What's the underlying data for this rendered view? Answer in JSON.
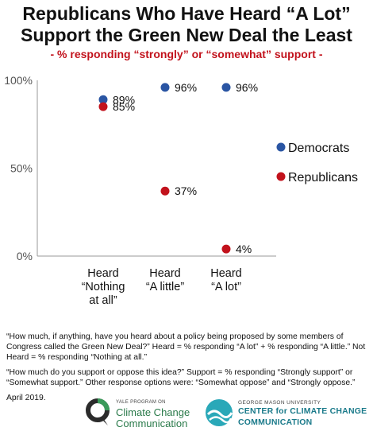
{
  "header": {
    "title_line1": "Republicans Who Have Heard “A Lot”",
    "title_line2": "Support the Green New Deal the Least",
    "subtitle": "- % responding “strongly” or “somewhat” support -"
  },
  "colors": {
    "democrats": "#2a55a3",
    "republicans": "#c2121c",
    "subtitle": "#c2121c",
    "grid": "#d0d0d0",
    "axis": "#999999"
  },
  "chart_data": {
    "type": "scatter",
    "categories": [
      "Heard\n“Nothing\nat all”",
      "Heard\n“A little”",
      "Heard\n“A lot”"
    ],
    "series": [
      {
        "name": "Democrats",
        "values": [
          89,
          96,
          96
        ],
        "labels": [
          "89%",
          "96%",
          "96%"
        ]
      },
      {
        "name": "Republicans",
        "values": [
          85,
          37,
          4
        ],
        "labels": [
          "85%",
          "37%",
          "4%"
        ]
      }
    ],
    "ylim": [
      0,
      100
    ],
    "yticks": [
      "0%",
      "50%",
      "100%"
    ],
    "legend_position": "right",
    "grid": false
  },
  "notes": {
    "note1": "“How much, if anything, have you heard about a policy being proposed by some members of Congress called the Green New Deal?” Heard =  % responding “A lot” + % responding “A little.” Not Heard = % responding “Nothing at all.”",
    "note2": "“How much do you support or oppose this idea?”  Support = % responding “Strongly support” or “Somewhat support.” Other response options were: “Somewhat oppose” and “Strongly oppose.”",
    "date": "April 2019."
  },
  "logos": {
    "yale_small": "YALE PROGRAM ON",
    "yale_line1": "Climate Change",
    "yale_line2": "Communication",
    "gmu_small": "GEORGE MASON UNIVERSITY",
    "gmu_line1": "CENTER for CLIMATE CHANGE",
    "gmu_line2": "COMMUNICATION"
  }
}
